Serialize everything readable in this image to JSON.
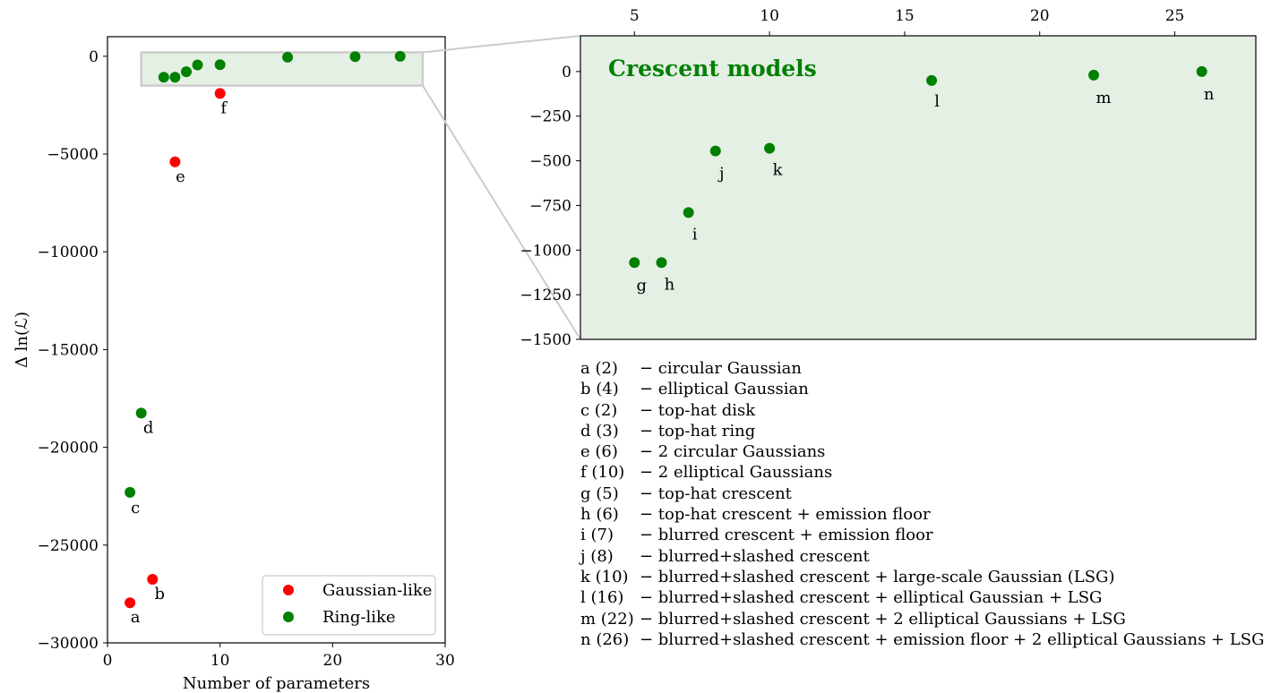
{
  "chart_data": [
    {
      "type": "scatter",
      "xlabel": "Number of parameters",
      "ylabel": "Δ ln(ℒ)",
      "xlim": [
        0,
        30
      ],
      "ylim": [
        -30000,
        1000
      ],
      "xticks": [
        0,
        10,
        20,
        30
      ],
      "yticks": [
        0,
        -5000,
        -10000,
        -15000,
        -20000,
        -25000,
        -30000
      ],
      "ytick_labels": [
        "0",
        "−5000",
        "−10000",
        "−15000",
        "−20000",
        "−25000",
        "−30000"
      ],
      "legend": {
        "placement": "lower-right",
        "entries": [
          {
            "label": "Gaussian-like",
            "color": "#ff0000"
          },
          {
            "label": "Ring-like",
            "color": "#008000"
          }
        ]
      },
      "zoom_region": {
        "x": [
          3,
          28
        ],
        "y": [
          -1500,
          200
        ]
      },
      "series": [
        {
          "name": "Gaussian-like",
          "color": "#ff0000",
          "points": [
            {
              "id": "a",
              "x": 2,
              "y": -27950
            },
            {
              "id": "b",
              "x": 4,
              "y": -26750
            },
            {
              "id": "e",
              "x": 6,
              "y": -5400
            },
            {
              "id": "f",
              "x": 10,
              "y": -1900
            }
          ]
        },
        {
          "name": "Ring-like",
          "color": "#008000",
          "points": [
            {
              "id": "c",
              "x": 2,
              "y": -22300
            },
            {
              "id": "d",
              "x": 3,
              "y": -18250
            },
            {
              "id": "g",
              "x": 5,
              "y": -1070
            },
            {
              "id": "h",
              "x": 6,
              "y": -1070
            },
            {
              "id": "i",
              "x": 7,
              "y": -790
            },
            {
              "id": "j",
              "x": 8,
              "y": -445
            },
            {
              "id": "k",
              "x": 10,
              "y": -430
            },
            {
              "id": "l",
              "x": 16,
              "y": -50
            },
            {
              "id": "m",
              "x": 22,
              "y": -20
            },
            {
              "id": "n",
              "x": 26,
              "y": 0
            }
          ]
        }
      ],
      "labeled_points": [
        "a",
        "b",
        "c",
        "d",
        "e",
        "f"
      ]
    },
    {
      "type": "scatter",
      "title": "Crescent models",
      "xlim": [
        3,
        28
      ],
      "ylim": [
        -1500,
        200
      ],
      "xticks": [
        5,
        10,
        15,
        20,
        25
      ],
      "yticks": [
        0,
        -250,
        -500,
        -750,
        -1000,
        -1250,
        -1500
      ],
      "ytick_labels": [
        "0",
        "−250",
        "−500",
        "−750",
        "−1000",
        "−1250",
        "−1500"
      ],
      "background": "#e5f0e5",
      "title_color": "#008000",
      "point_color": "#008000",
      "points": [
        {
          "id": "g",
          "x": 5,
          "y": -1070
        },
        {
          "id": "h",
          "x": 6,
          "y": -1070
        },
        {
          "id": "i",
          "x": 7,
          "y": -790
        },
        {
          "id": "j",
          "x": 8,
          "y": -445
        },
        {
          "id": "k",
          "x": 10,
          "y": -430
        },
        {
          "id": "l",
          "x": 16,
          "y": -50
        },
        {
          "id": "m",
          "x": 22,
          "y": -20
        },
        {
          "id": "n",
          "x": 26,
          "y": 0
        }
      ]
    }
  ],
  "models": [
    {
      "code": "a (2)",
      "desc": "− circular Gaussian"
    },
    {
      "code": "b (4)",
      "desc": "− elliptical Gaussian"
    },
    {
      "code": "c (2)",
      "desc": "− top-hat disk"
    },
    {
      "code": "d (3)",
      "desc": "− top-hat ring"
    },
    {
      "code": "e (6)",
      "desc": "− 2 circular Gaussians"
    },
    {
      "code": "f (10)",
      "desc": "− 2 elliptical Gaussians"
    },
    {
      "code": "g (5)",
      "desc": "− top-hat crescent"
    },
    {
      "code": "h (6)",
      "desc": "− top-hat crescent + emission floor"
    },
    {
      "code": "i (7)",
      "desc": "− blurred crescent + emission floor"
    },
    {
      "code": "j (8)",
      "desc": "− blurred+slashed crescent"
    },
    {
      "code": "k (10)",
      "desc": "− blurred+slashed crescent + large-scale Gaussian (LSG)"
    },
    {
      "code": "l (16)",
      "desc": "− blurred+slashed crescent + elliptical Gaussian + LSG"
    },
    {
      "code": "m (22)",
      "desc": "− blurred+slashed crescent + 2 elliptical Gaussians + LSG"
    },
    {
      "code": "n (26)",
      "desc": "− blurred+slashed crescent + emission floor + 2 elliptical Gaussians + LSG"
    }
  ]
}
